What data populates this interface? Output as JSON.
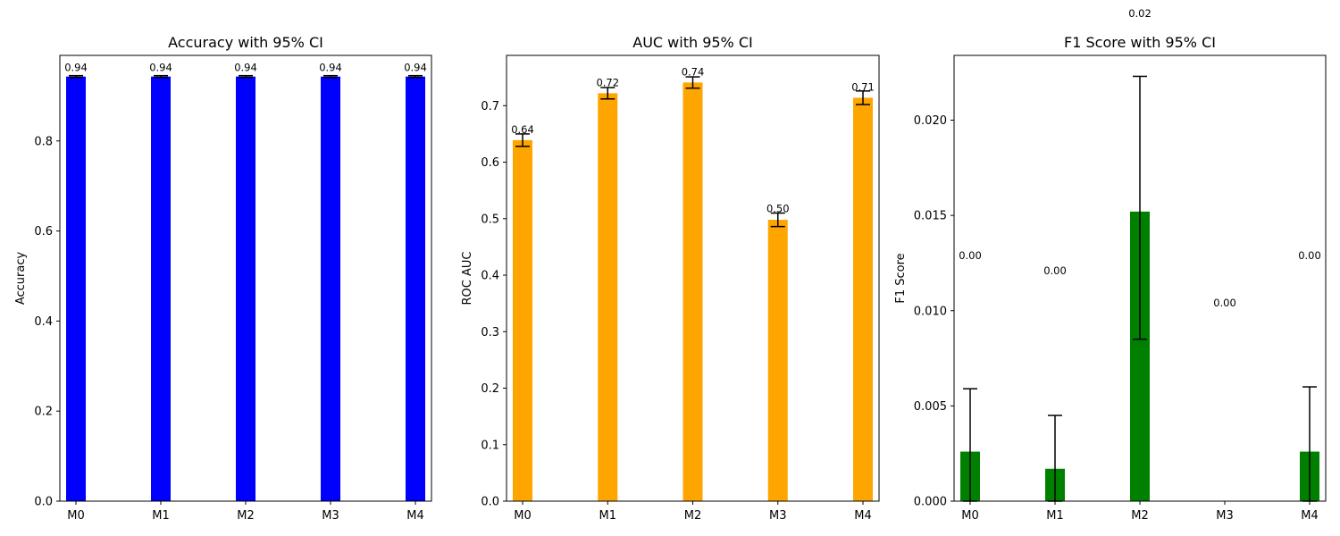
{
  "chart_data": [
    {
      "type": "bar",
      "title": "Accuracy with 95% CI",
      "xlabel": "",
      "ylabel": "Accuracy",
      "categories": [
        "M0",
        "M1",
        "M2",
        "M3",
        "M4"
      ],
      "values": [
        0.943,
        0.943,
        0.943,
        0.943,
        0.943
      ],
      "ci_low": [
        0.941,
        0.941,
        0.941,
        0.941,
        0.941
      ],
      "ci_high": [
        0.945,
        0.945,
        0.945,
        0.945,
        0.945
      ],
      "data_labels": [
        "0.94",
        "0.94",
        "0.94",
        "0.94",
        "0.94"
      ],
      "data_label_y": [
        0.963,
        0.963,
        0.963,
        0.963,
        0.963
      ],
      "ylim": [
        0,
        0.99
      ],
      "yticks": [
        0.0,
        0.2,
        0.4,
        0.6,
        0.8
      ],
      "ytick_labels": [
        "0.0",
        "0.2",
        "0.4",
        "0.6",
        "0.8"
      ],
      "color": "#0000ff",
      "grid": false,
      "legend": "none"
    },
    {
      "type": "bar",
      "title": "AUC with 95% CI",
      "xlabel": "",
      "ylabel": "ROC AUC",
      "categories": [
        "M0",
        "M1",
        "M2",
        "M3",
        "M4"
      ],
      "values": [
        0.639,
        0.722,
        0.741,
        0.498,
        0.714
      ],
      "ci_low": [
        0.628,
        0.712,
        0.731,
        0.486,
        0.702
      ],
      "ci_high": [
        0.65,
        0.732,
        0.751,
        0.51,
        0.726
      ],
      "data_labels": [
        "0.64",
        "0.72",
        "0.74",
        "0.50",
        "0.71"
      ],
      "data_label_y": [
        0.658,
        0.741,
        0.76,
        0.518,
        0.733
      ],
      "ylim": [
        0,
        0.789
      ],
      "yticks": [
        0.0,
        0.1,
        0.2,
        0.3,
        0.4,
        0.5,
        0.6,
        0.7
      ],
      "ytick_labels": [
        "0.0",
        "0.1",
        "0.2",
        "0.3",
        "0.4",
        "0.5",
        "0.6",
        "0.7"
      ],
      "color": "#ffa500",
      "grid": false,
      "legend": "none"
    },
    {
      "type": "bar",
      "title": "F1 Score with 95% CI",
      "xlabel": "",
      "ylabel": "F1 Score",
      "categories": [
        "M0",
        "M1",
        "M2",
        "M3",
        "M4"
      ],
      "values": [
        0.0026,
        0.0017,
        0.0152,
        0.0,
        0.0026
      ],
      "ci_low": [
        0.0,
        0.0,
        0.0085,
        0.0,
        0.0
      ],
      "ci_high": [
        0.0059,
        0.0045,
        0.0223,
        0.0,
        0.006
      ],
      "data_labels": [
        "0.00",
        "0.00",
        "0.02",
        "0.00",
        "0.00"
      ],
      "data_label_y": [
        0.0129,
        0.0121,
        0.0256,
        0.0104,
        0.0129
      ],
      "ylim": [
        0,
        0.0234
      ],
      "yticks": [
        0.0,
        0.005,
        0.01,
        0.015,
        0.02
      ],
      "ytick_labels": [
        "0.000",
        "0.005",
        "0.010",
        "0.015",
        "0.020"
      ],
      "color": "#008000",
      "grid": false,
      "legend": "none"
    }
  ]
}
